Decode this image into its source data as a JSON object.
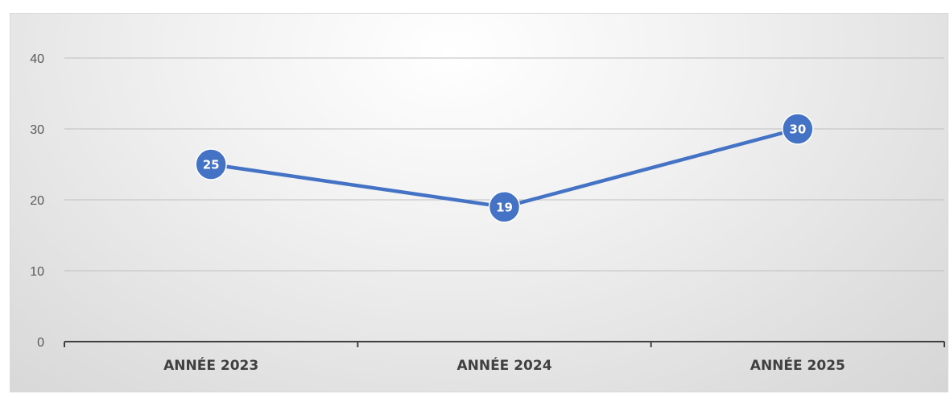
{
  "chart_data": {
    "type": "line",
    "categories": [
      "ANNÉE 2023",
      "ANNÉE 2024",
      "ANNÉE 2025"
    ],
    "series": [
      {
        "values": [
          25,
          19,
          30
        ]
      }
    ],
    "ylim": [
      0,
      40
    ],
    "yticks": [
      "0",
      "10",
      "20",
      "30",
      "40"
    ],
    "grid": true,
    "colors": {
      "line": "#4472c4",
      "marker": "#4472c4",
      "gridline": "#bfbfbf",
      "axis": "#404040"
    }
  }
}
